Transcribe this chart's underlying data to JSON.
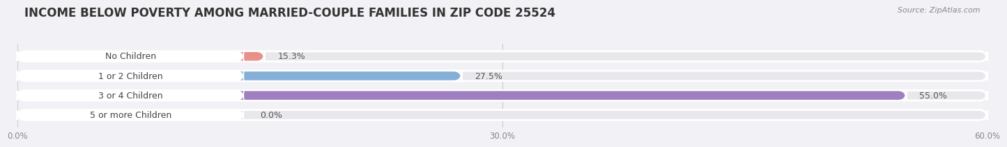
{
  "title": "INCOME BELOW POVERTY AMONG MARRIED-COUPLE FAMILIES IN ZIP CODE 25524",
  "source": "Source: ZipAtlas.com",
  "categories": [
    "No Children",
    "1 or 2 Children",
    "3 or 4 Children",
    "5 or more Children"
  ],
  "values": [
    15.3,
    27.5,
    55.0,
    0.0
  ],
  "bar_colors": [
    "#e8908a",
    "#85afd6",
    "#9f7fbf",
    "#6ecece"
  ],
  "bar_bg_color": "#e8e8ec",
  "label_pill_color": "#ffffff",
  "label_text_color": "#444444",
  "value_text_color": "#555555",
  "xlim": [
    0,
    60
  ],
  "xtick_labels": [
    "0.0%",
    "30.0%",
    "60.0%"
  ],
  "xtick_values": [
    0,
    30,
    60
  ],
  "background_color": "#f2f2f6",
  "title_fontsize": 12,
  "label_fontsize": 9,
  "value_fontsize": 9,
  "bar_height": 0.52,
  "title_color": "#333333",
  "source_color": "#888888"
}
